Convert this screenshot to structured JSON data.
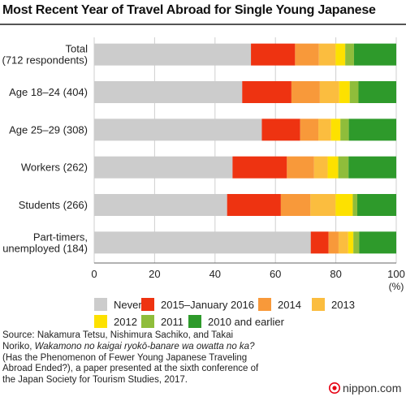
{
  "title": "Most Recent Year of Travel Abroad for Single Young Japanese",
  "chart_data": {
    "type": "bar",
    "orientation": "horizontal",
    "stacked": true,
    "categories": [
      [
        "Total",
        "(712 respondents)"
      ],
      [
        "Age 18–24 (404)"
      ],
      [
        "Age 25–29 (308)"
      ],
      [
        "Workers (262)"
      ],
      [
        "Students (266)"
      ],
      [
        "Part-timers,",
        "unemployed (184)"
      ]
    ],
    "series": [
      {
        "name": "Never",
        "color": "#cccccc",
        "values": [
          51.9,
          49.0,
          55.5,
          45.8,
          44.0,
          71.7
        ]
      },
      {
        "name": "2015–January 2016",
        "color": "#ee3311",
        "values": [
          14.6,
          16.3,
          12.7,
          18.0,
          17.8,
          5.9
        ]
      },
      {
        "name": "2014",
        "color": "#f8993a",
        "values": [
          7.9,
          9.4,
          6.0,
          9.0,
          9.8,
          3.3
        ]
      },
      {
        "name": "2013",
        "color": "#fbbd3f",
        "values": [
          5.5,
          6.4,
          4.2,
          4.5,
          8.3,
          3.2
        ]
      },
      {
        "name": "2012",
        "color": "#fde100",
        "values": [
          3.2,
          3.5,
          3.1,
          3.5,
          5.7,
          1.7
        ]
      },
      {
        "name": "2011",
        "color": "#8fbd3b",
        "values": [
          2.9,
          2.9,
          2.8,
          3.4,
          1.5,
          1.9
        ]
      },
      {
        "name": "2010 and earlier",
        "color": "#2e9a2b",
        "values": [
          14.0,
          12.5,
          15.7,
          15.8,
          12.9,
          12.3
        ]
      }
    ],
    "xlim": [
      0,
      100
    ],
    "xticks": [
      0,
      20,
      40,
      60,
      80,
      100
    ],
    "xunit": "(%)",
    "grid": true,
    "legend_position": "bottom"
  },
  "source": {
    "line1": "Source: Nakamura Tetsu, Nishimura Sachiko, and Takai",
    "line2_plain": "Noriko, ",
    "line2_italic": "Wakamono no kaigai ryokō-banare wa owatta no ka?",
    "line3": "(Has the Phenomenon of Fewer Young Japanese Traveling",
    "line4": "Abroad Ended?), a paper presented at the sixth conference of",
    "line5": "the Japan Society for Tourism Studies, 2017."
  },
  "brand": {
    "label": "nippon.com",
    "color": "#e60012"
  }
}
